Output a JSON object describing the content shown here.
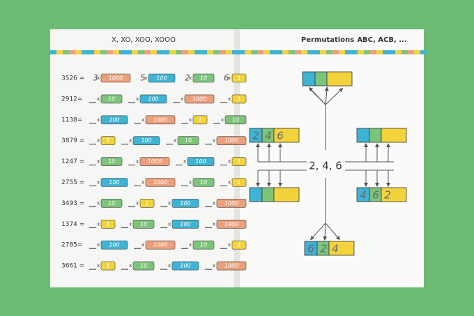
{
  "left_page": {
    "title": "X, XO, XOO, XOOO",
    "multiply_sign": "x",
    "chip_colors": {
      "1": "#f3d33c",
      "10": "#7cc47a",
      "100": "#3fb3d3",
      "1000": "#ec9f7c"
    },
    "rows": [
      {
        "label": "3526 =",
        "chips": [
          "1000",
          "100",
          "10",
          "1"
        ],
        "digits": [
          "3",
          "5",
          "2",
          "6"
        ]
      },
      {
        "label": "2912=",
        "chips": [
          "10",
          "100",
          "1000",
          "1"
        ]
      },
      {
        "label": "1138=",
        "chips": [
          "100",
          "1000",
          "1",
          "10"
        ]
      },
      {
        "label": "3879 =",
        "chips": [
          "1",
          "100",
          "10",
          "1000"
        ]
      },
      {
        "label": "1247 =",
        "chips": [
          "10",
          "1000",
          "100",
          "1"
        ]
      },
      {
        "label": "2755 =",
        "chips": [
          "100",
          "1000",
          "10",
          "1"
        ]
      },
      {
        "label": "3493 =",
        "chips": [
          "10",
          "1",
          "100",
          "1000"
        ]
      },
      {
        "label": "1374 =",
        "chips": [
          "1",
          "10",
          "100",
          "1000"
        ]
      },
      {
        "label": "2785=",
        "chips": [
          "100",
          "1000",
          "10",
          "1"
        ]
      },
      {
        "label": "3661 =",
        "chips": [
          "1",
          "10",
          "100",
          "1000"
        ]
      }
    ]
  },
  "right_page": {
    "title": "Permutations",
    "subtitle": "ABC, ACB, ...",
    "center": "2, 4, 6",
    "filled_blocks": [
      [
        "2",
        "4",
        "6"
      ],
      [
        "4",
        "6",
        "2"
      ],
      [
        "6",
        "2",
        "4"
      ]
    ]
  }
}
